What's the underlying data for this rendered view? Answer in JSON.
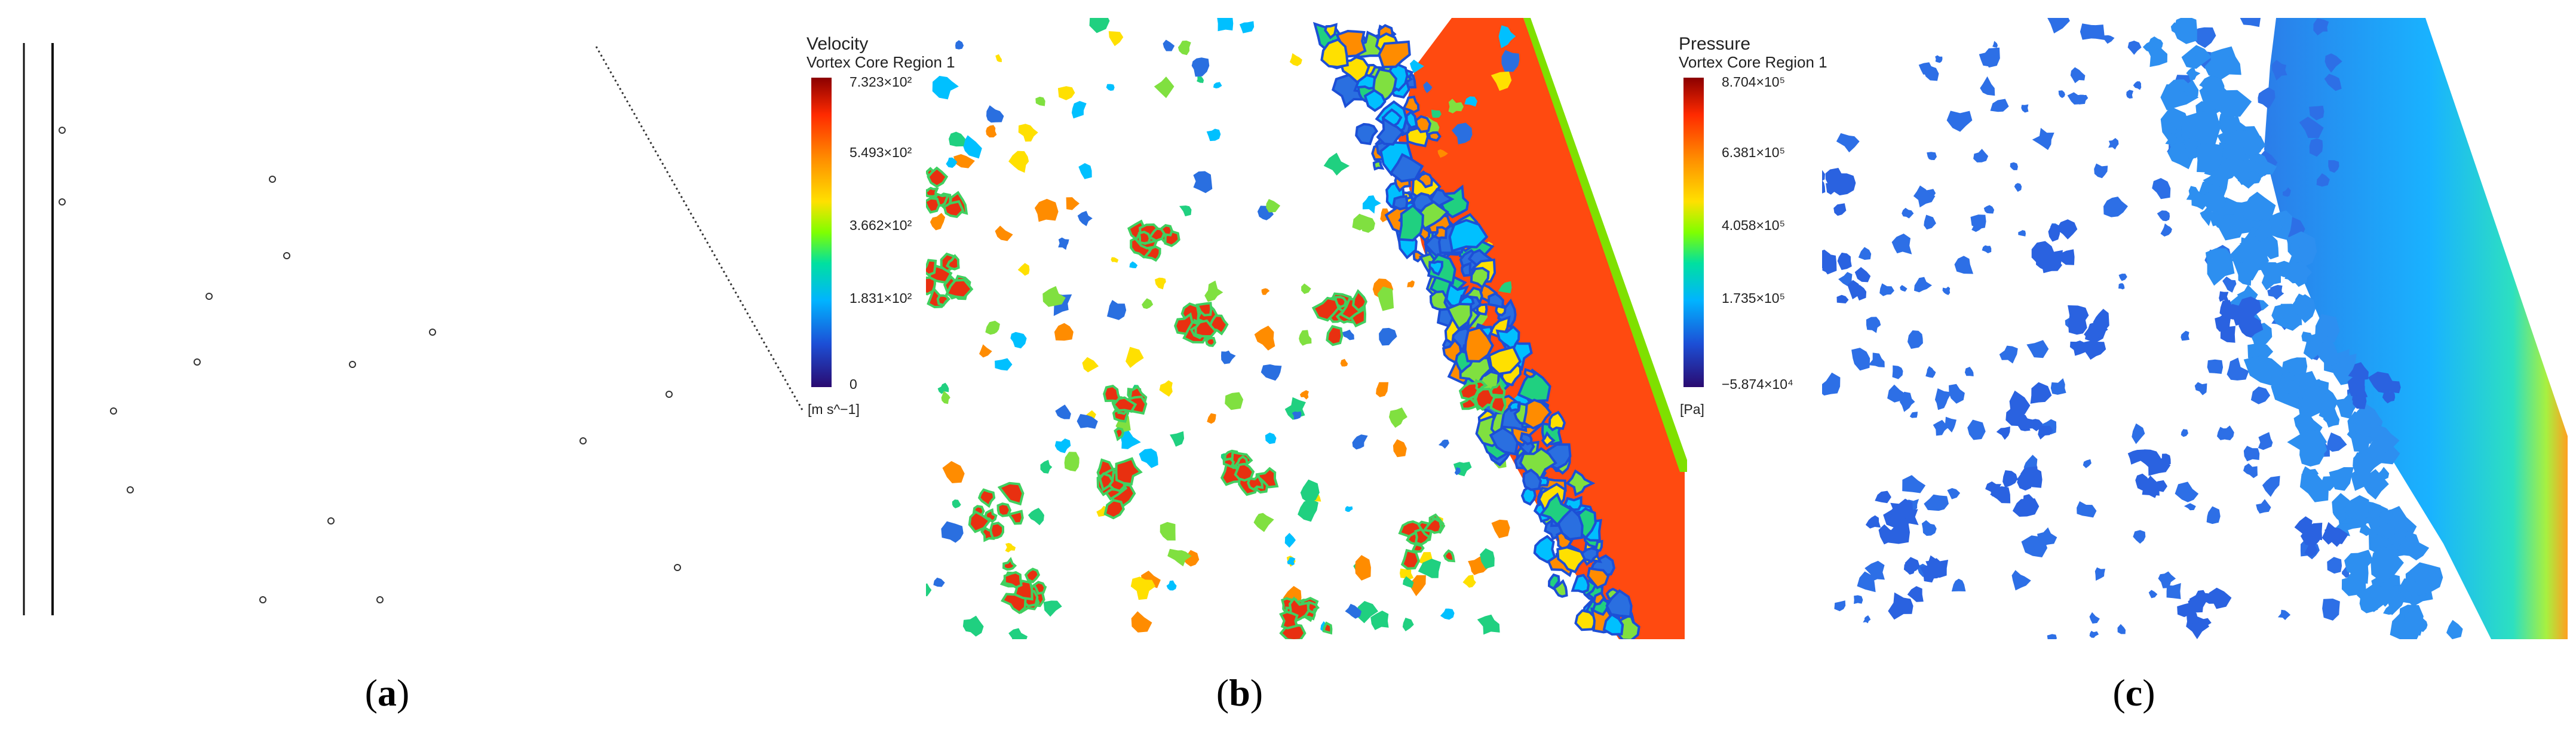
{
  "panels": [
    {
      "id": "a",
      "caption_letter": "a"
    },
    {
      "id": "b",
      "caption_letter": "b",
      "legend": {
        "title": "Velocity",
        "subtitle": "Vortex Core Region 1",
        "ticks": [
          "7.323×10²",
          "5.493×10²",
          "3.662×10²",
          "1.831×10²",
          "0"
        ],
        "unit": "[m s^−1]",
        "colormap": [
          "#8b0000",
          "#ff2a00",
          "#ff8c00",
          "#ffe000",
          "#7fff00",
          "#00e0a0",
          "#00b4ff",
          "#1c4fd6",
          "#2a0a70"
        ]
      }
    },
    {
      "id": "c",
      "caption_letter": "c",
      "legend": {
        "title": "Pressure",
        "subtitle": "Vortex Core Region 1",
        "ticks": [
          "8.704×10⁵",
          "6.381×10⁵",
          "4.058×10⁵",
          "1.735×10⁵",
          "−5.874×10⁴"
        ],
        "unit": "[Pa]",
        "colormap": [
          "#8b0000",
          "#ff2a00",
          "#ff8c00",
          "#ffe000",
          "#7fff00",
          "#00e0a0",
          "#00b4ff",
          "#1c4fd6",
          "#2a0a70"
        ]
      }
    }
  ]
}
